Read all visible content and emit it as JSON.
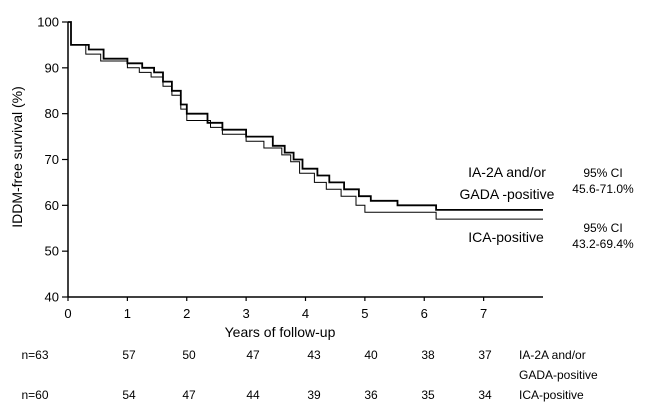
{
  "chart_data": {
    "type": "line",
    "step": true,
    "xlabel": "Years of follow-up",
    "ylabel": "IDDM-free survival (%)",
    "xlim": [
      0,
      8
    ],
    "ylim": [
      40,
      100
    ],
    "xticks": [
      0,
      1,
      2,
      3,
      4,
      5,
      6,
      7
    ],
    "yticks": [
      40,
      50,
      60,
      70,
      80,
      90,
      100
    ],
    "grid": false,
    "series": [
      {
        "name": "IA-2A and/or GADA -positive",
        "ci": "95% CI",
        "ci_range": "45.6-71.0%",
        "color": "#000000",
        "emphasis": "thick",
        "x": [
          0,
          0.05,
          0.35,
          0.6,
          1.0,
          1.25,
          1.45,
          1.6,
          1.75,
          1.9,
          2.0,
          2.35,
          2.6,
          3.0,
          3.45,
          3.65,
          3.8,
          3.95,
          4.2,
          4.4,
          4.65,
          4.9,
          5.1,
          5.55,
          6.2,
          8.0
        ],
        "y": [
          100,
          95,
          94,
          92,
          91,
          90,
          89,
          87,
          85,
          82,
          80,
          78,
          76.5,
          75,
          73,
          71.5,
          70,
          68,
          66.5,
          65,
          63.5,
          62,
          61,
          60,
          59,
          59
        ]
      },
      {
        "name": "ICA-positive",
        "ci": "95% CI",
        "ci_range": "43.2-69.4%",
        "color": "#000000",
        "emphasis": "thin",
        "x": [
          0,
          0.05,
          0.3,
          0.55,
          1.0,
          1.2,
          1.4,
          1.6,
          1.75,
          1.9,
          2.0,
          2.4,
          2.6,
          3.0,
          3.3,
          3.6,
          3.75,
          3.9,
          4.15,
          4.35,
          4.6,
          4.85,
          5.0,
          6.2,
          8.0
        ],
        "y": [
          100,
          95,
          93,
          91.5,
          90,
          89,
          88,
          86,
          84,
          81,
          78.5,
          77,
          75.5,
          74,
          72.5,
          71,
          69.5,
          67,
          65,
          63.5,
          62,
          60,
          58.5,
          57,
          57
        ]
      }
    ],
    "risk_table": {
      "group_labels": [
        [
          "IA-2A and/or",
          "GADA-positive"
        ],
        [
          "ICA-positive"
        ]
      ],
      "rows": [
        [
          "n=63",
          "57",
          "50",
          "47",
          "43",
          "40",
          "38",
          "37"
        ],
        [
          "n=60",
          "54",
          "47",
          "44",
          "39",
          "36",
          "35",
          "34"
        ]
      ]
    }
  }
}
